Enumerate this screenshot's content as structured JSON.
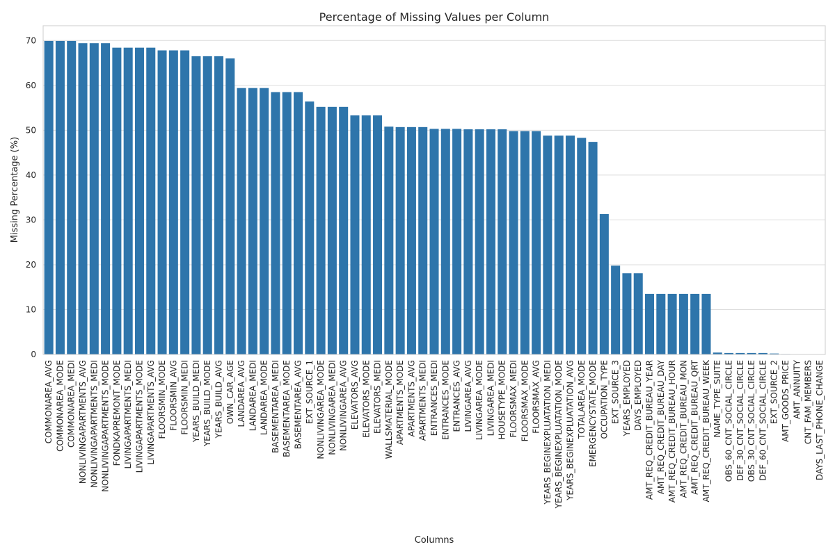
{
  "chart_data": {
    "type": "bar",
    "title": "Percentage of Missing Values per Column",
    "xlabel": "Columns",
    "ylabel": "Missing Percentage (%)",
    "ylim": [
      0,
      73.3
    ],
    "yticks": [
      0,
      10,
      20,
      30,
      40,
      50,
      60,
      70
    ],
    "grid": true,
    "categories": [
      "COMMONAREA_AVG",
      "COMMONAREA_MODE",
      "COMMONAREA_MEDI",
      "NONLIVINGAPARTMENTS_AVG",
      "NONLIVINGAPARTMENTS_MEDI",
      "NONLIVINGAPARTMENTS_MODE",
      "FONDKAPREMONT_MODE",
      "LIVINGAPARTMENTS_MEDI",
      "LIVINGAPARTMENTS_MODE",
      "LIVINGAPARTMENTS_AVG",
      "FLOORSMIN_MODE",
      "FLOORSMIN_AVG",
      "FLOORSMIN_MEDI",
      "YEARS_BUILD_MEDI",
      "YEARS_BUILD_MODE",
      "YEARS_BUILD_AVG",
      "OWN_CAR_AGE",
      "LANDAREA_AVG",
      "LANDAREA_MEDI",
      "LANDAREA_MODE",
      "BASEMENTAREA_MEDI",
      "BASEMENTAREA_MODE",
      "BASEMENTAREA_AVG",
      "EXT_SOURCE_1",
      "NONLIVINGAREA_MODE",
      "NONLIVINGAREA_MEDI",
      "NONLIVINGAREA_AVG",
      "ELEVATORS_AVG",
      "ELEVATORS_MODE",
      "ELEVATORS_MEDI",
      "WALLSMATERIAL_MODE",
      "APARTMENTS_MODE",
      "APARTMENTS_AVG",
      "APARTMENTS_MEDI",
      "ENTRANCES_MEDI",
      "ENTRANCES_MODE",
      "ENTRANCES_AVG",
      "LIVINGAREA_AVG",
      "LIVINGAREA_MODE",
      "LIVINGAREA_MEDI",
      "HOUSETYPE_MODE",
      "FLOORSMAX_MEDI",
      "FLOORSMAX_MODE",
      "FLOORSMAX_AVG",
      "YEARS_BEGINEXPLUATATION_MEDI",
      "YEARS_BEGINEXPLUATATION_MODE",
      "YEARS_BEGINEXPLUATATION_AVG",
      "TOTALAREA_MODE",
      "EMERGENCYSTATE_MODE",
      "OCCUPATION_TYPE",
      "EXT_SOURCE_3",
      "YEARS_EMPLOYED",
      "DAYS_EMPLOYED",
      "AMT_REQ_CREDIT_BUREAU_YEAR",
      "AMT_REQ_CREDIT_BUREAU_DAY",
      "AMT_REQ_CREDIT_BUREAU_HOUR",
      "AMT_REQ_CREDIT_BUREAU_MON",
      "AMT_REQ_CREDIT_BUREAU_QRT",
      "AMT_REQ_CREDIT_BUREAU_WEEK",
      "NAME_TYPE_SUITE",
      "OBS_60_CNT_SOCIAL_CIRCLE",
      "DEF_30_CNT_SOCIAL_CIRCLE",
      "OBS_30_CNT_SOCIAL_CIRCLE",
      "DEF_60_CNT_SOCIAL_CIRCLE",
      "EXT_SOURCE_2",
      "AMT_GOODS_PRICE",
      "AMT_ANNUITY",
      "CNT_FAM_MEMBERS",
      "DAYS_LAST_PHONE_CHANGE"
    ],
    "values": [
      69.9,
      69.9,
      69.9,
      69.4,
      69.4,
      69.4,
      68.4,
      68.4,
      68.4,
      68.4,
      67.8,
      67.8,
      67.8,
      66.5,
      66.5,
      66.5,
      66.0,
      59.4,
      59.4,
      59.4,
      58.5,
      58.5,
      58.5,
      56.4,
      55.2,
      55.2,
      55.2,
      53.3,
      53.3,
      53.3,
      50.8,
      50.7,
      50.7,
      50.7,
      50.3,
      50.3,
      50.3,
      50.2,
      50.2,
      50.2,
      50.2,
      49.8,
      49.8,
      49.8,
      48.8,
      48.8,
      48.8,
      48.3,
      47.4,
      31.3,
      19.8,
      18.1,
      18.1,
      13.5,
      13.5,
      13.5,
      13.5,
      13.5,
      13.5,
      0.42,
      0.33,
      0.33,
      0.33,
      0.33,
      0.21,
      0.09,
      0.004,
      0.001,
      0.0003
    ],
    "colors": {
      "bar": "#2e75ab",
      "grid": "#dcdcdc",
      "axis_frame": "#cccccc",
      "text": "#262626"
    }
  }
}
